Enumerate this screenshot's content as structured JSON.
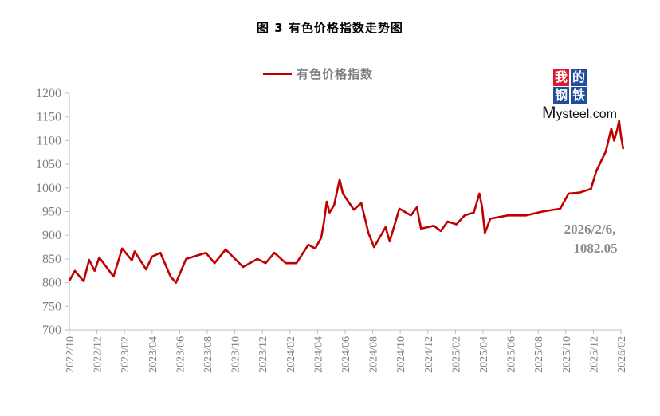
{
  "title": "图 3  有色价格指数走势图",
  "logo": {
    "chars": [
      "我",
      "的",
      "钢",
      "铁"
    ],
    "text": "Mysteel.com",
    "colors": [
      "#e0182d",
      "#1f4e9c",
      "#1f4e9c",
      "#1f4e9c"
    ]
  },
  "chart_data": {
    "type": "line",
    "title": "图 3  有色价格指数走势图",
    "xlabel": "",
    "ylabel": "",
    "ylim": [
      700,
      1200
    ],
    "yticks": [
      "700",
      "750",
      "800",
      "850",
      "900",
      "950",
      "1000",
      "1050",
      "1100",
      "1150",
      "1200"
    ],
    "xticks": [
      "2022/10",
      "2022/12",
      "2023/02",
      "2023/04",
      "2023/06",
      "2023/08",
      "2023/10",
      "2023/12",
      "2024/02",
      "2024/04",
      "2024/06",
      "2024/08",
      "2024/10",
      "2024/12",
      "2025/02",
      "2025/04",
      "2025/06",
      "2025/08",
      "2025/10",
      "2025/12",
      "2026/02"
    ],
    "grid": false,
    "legend": "top-center",
    "series": [
      {
        "name": "有色价格指数",
        "color": "#c00000",
        "points": [
          [
            "2022-10-01",
            804
          ],
          [
            "2022-10-13",
            825
          ],
          [
            "2022-11-02",
            803
          ],
          [
            "2022-11-14",
            848
          ],
          [
            "2022-11-26",
            825
          ],
          [
            "2022-12-06",
            853
          ],
          [
            "2023-01-07",
            813
          ],
          [
            "2023-01-26",
            872
          ],
          [
            "2023-02-17",
            847
          ],
          [
            "2023-02-23",
            866
          ],
          [
            "2023-03-18",
            828
          ],
          [
            "2023-04-01",
            855
          ],
          [
            "2023-04-19",
            863
          ],
          [
            "2023-05-11",
            813
          ],
          [
            "2023-05-23",
            800
          ],
          [
            "2023-06-15",
            850
          ],
          [
            "2023-07-28",
            863
          ],
          [
            "2023-08-17",
            841
          ],
          [
            "2023-09-11",
            870
          ],
          [
            "2023-10-19",
            833
          ],
          [
            "2023-11-20",
            850
          ],
          [
            "2023-12-08",
            841
          ],
          [
            "2023-12-27",
            863
          ],
          [
            "2024-01-22",
            841
          ],
          [
            "2024-02-15",
            841
          ],
          [
            "2024-03-11",
            880
          ],
          [
            "2024-03-26",
            872
          ],
          [
            "2024-04-09",
            895
          ],
          [
            "2024-04-15",
            929
          ],
          [
            "2024-04-21",
            971
          ],
          [
            "2024-04-27",
            948
          ],
          [
            "2024-05-07",
            964
          ],
          [
            "2024-05-19",
            1018
          ],
          [
            "2024-05-26",
            988
          ],
          [
            "2024-06-08",
            971
          ],
          [
            "2024-06-20",
            954
          ],
          [
            "2024-07-06",
            968
          ],
          [
            "2024-07-22",
            904
          ],
          [
            "2024-08-04",
            875
          ],
          [
            "2024-08-29",
            917
          ],
          [
            "2024-09-08",
            887
          ],
          [
            "2024-09-29",
            956
          ],
          [
            "2024-10-24",
            942
          ],
          [
            "2024-11-07",
            959
          ],
          [
            "2024-11-16",
            914
          ],
          [
            "2024-12-14",
            920
          ],
          [
            "2024-12-29",
            909
          ],
          [
            "2025-01-14",
            929
          ],
          [
            "2025-02-03",
            923
          ],
          [
            "2025-02-21",
            942
          ],
          [
            "2025-03-11",
            948
          ],
          [
            "2025-03-23",
            988
          ],
          [
            "2025-03-29",
            960
          ],
          [
            "2025-04-05",
            905
          ],
          [
            "2025-04-17",
            935
          ],
          [
            "2025-05-25",
            942
          ],
          [
            "2025-07-04",
            942
          ],
          [
            "2025-08-10",
            950
          ],
          [
            "2025-09-19",
            956
          ],
          [
            "2025-10-07",
            988
          ],
          [
            "2025-11-01",
            990
          ],
          [
            "2025-11-26",
            998
          ],
          [
            "2025-12-07",
            1035
          ],
          [
            "2025-12-28",
            1077
          ],
          [
            "2026-01-10",
            1125
          ],
          [
            "2026-01-16",
            1100
          ],
          [
            "2026-01-22",
            1120
          ],
          [
            "2026-01-27",
            1142
          ],
          [
            "2026-02-01",
            1110
          ],
          [
            "2026-02-06",
            1082.05
          ]
        ]
      }
    ],
    "annotations": [
      {
        "date_label": "2026/2/6,",
        "value_label": "1082.05"
      }
    ]
  }
}
